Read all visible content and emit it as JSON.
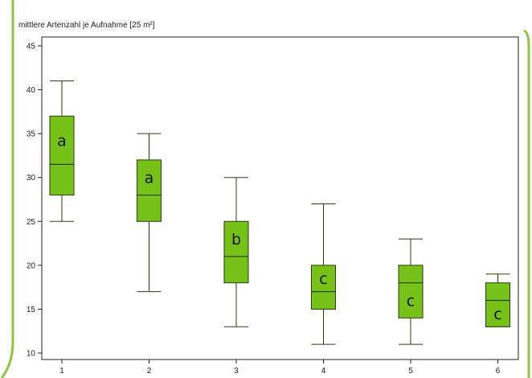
{
  "colors": {
    "box_fill": "#77c219",
    "box_stroke": "#2b3a10",
    "frame_accent": "#8cc63f",
    "axis": "#222222"
  },
  "chart_data": {
    "type": "boxplot",
    "title": "mittlere Artenzahl je Aufnahme [25 m²]",
    "xlabel": "",
    "ylabel": "",
    "categories": [
      "1",
      "2",
      "3",
      "4",
      "5",
      "6"
    ],
    "ylim": [
      9.5,
      45.5
    ],
    "yticks": [
      10,
      15,
      20,
      25,
      30,
      35,
      40,
      45
    ],
    "grid": false,
    "boxes": [
      {
        "category": "1",
        "min": 25,
        "q1": 28,
        "median": 31.5,
        "q3": 37,
        "max": 41,
        "letter": "a"
      },
      {
        "category": "2",
        "min": 17,
        "q1": 25,
        "median": 28,
        "q3": 32,
        "max": 35,
        "letter": "a"
      },
      {
        "category": "3",
        "min": 13,
        "q1": 18,
        "median": 21,
        "q3": 25,
        "max": 30,
        "letter": "b"
      },
      {
        "category": "4",
        "min": 11,
        "q1": 15,
        "median": 17,
        "q3": 20,
        "max": 27,
        "letter": "c"
      },
      {
        "category": "5",
        "min": 11,
        "q1": 14,
        "median": 18,
        "q3": 20,
        "max": 23,
        "letter": "c"
      },
      {
        "category": "6",
        "min": 13,
        "q1": 13,
        "median": 16,
        "q3": 18,
        "max": 19,
        "letter": "c"
      }
    ]
  }
}
